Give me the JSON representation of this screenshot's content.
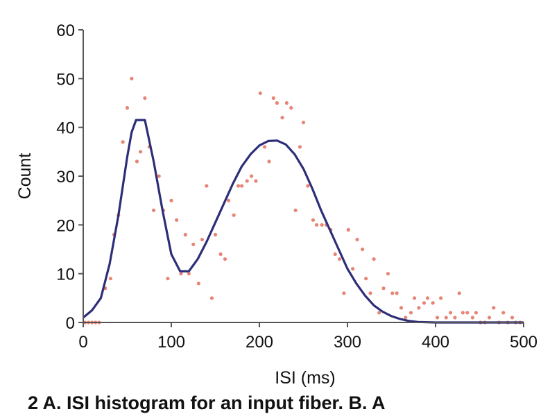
{
  "chart_data": {
    "type": "scatter",
    "title": "",
    "xlabel": "ISI (ms)",
    "ylabel": "Count",
    "xlim": [
      0,
      500
    ],
    "ylim": [
      0,
      60
    ],
    "xticks": [
      0,
      100,
      200,
      300,
      400,
      500
    ],
    "yticks": [
      0,
      10,
      20,
      30,
      40,
      50,
      60
    ],
    "grid": false,
    "colors": {
      "points": "#e2705e",
      "curve": "#2d2e78",
      "axis": "#555555"
    },
    "series": [
      {
        "name": "ISI histogram counts",
        "kind": "points",
        "points": [
          [
            2,
            0
          ],
          [
            6,
            0
          ],
          [
            10,
            0
          ],
          [
            14,
            0
          ],
          [
            18,
            0
          ],
          [
            25,
            7
          ],
          [
            31,
            9
          ],
          [
            35,
            18
          ],
          [
            40,
            22
          ],
          [
            45,
            37
          ],
          [
            50,
            44
          ],
          [
            55,
            50
          ],
          [
            61,
            33
          ],
          [
            65,
            35
          ],
          [
            70,
            46
          ],
          [
            75,
            36
          ],
          [
            80,
            23
          ],
          [
            86,
            30
          ],
          [
            91,
            23
          ],
          [
            96,
            9
          ],
          [
            100,
            25
          ],
          [
            106,
            21
          ],
          [
            111,
            10
          ],
          [
            116,
            18
          ],
          [
            120,
            10
          ],
          [
            125,
            16
          ],
          [
            131,
            8
          ],
          [
            135,
            17
          ],
          [
            140,
            28
          ],
          [
            146,
            5
          ],
          [
            150,
            18
          ],
          [
            156,
            14
          ],
          [
            161,
            13
          ],
          [
            165,
            25
          ],
          [
            171,
            22
          ],
          [
            176,
            28
          ],
          [
            180,
            28
          ],
          [
            186,
            29
          ],
          [
            191,
            30
          ],
          [
            196,
            29
          ],
          [
            201,
            47
          ],
          [
            206,
            36
          ],
          [
            211,
            33
          ],
          [
            216,
            46
          ],
          [
            220,
            45
          ],
          [
            226,
            42
          ],
          [
            231,
            45
          ],
          [
            236,
            44
          ],
          [
            241,
            23
          ],
          [
            246,
            36
          ],
          [
            250,
            41
          ],
          [
            255,
            28
          ],
          [
            261,
            21
          ],
          [
            265,
            20
          ],
          [
            271,
            20
          ],
          [
            276,
            20
          ],
          [
            281,
            19
          ],
          [
            286,
            14
          ],
          [
            291,
            13
          ],
          [
            296,
            6
          ],
          [
            301,
            19
          ],
          [
            306,
            11
          ],
          [
            311,
            17
          ],
          [
            317,
            15
          ],
          [
            321,
            9
          ],
          [
            326,
            6
          ],
          [
            330,
            13
          ],
          [
            336,
            2
          ],
          [
            341,
            7
          ],
          [
            346,
            10
          ],
          [
            351,
            6
          ],
          [
            356,
            6
          ],
          [
            361,
            3
          ],
          [
            366,
            1
          ],
          [
            372,
            2
          ],
          [
            376,
            5
          ],
          [
            381,
            3
          ],
          [
            387,
            4
          ],
          [
            391,
            5
          ],
          [
            397,
            4
          ],
          [
            402,
            1
          ],
          [
            406,
            5
          ],
          [
            412,
            1
          ],
          [
            417,
            2
          ],
          [
            422,
            1
          ],
          [
            427,
            6
          ],
          [
            431,
            2
          ],
          [
            436,
            2
          ],
          [
            442,
            1
          ],
          [
            446,
            2
          ],
          [
            451,
            0
          ],
          [
            456,
            0
          ],
          [
            461,
            1
          ],
          [
            466,
            3
          ],
          [
            472,
            0
          ],
          [
            477,
            2
          ],
          [
            482,
            0
          ],
          [
            487,
            1
          ],
          [
            491,
            0
          ],
          [
            496,
            0
          ]
        ]
      },
      {
        "name": "fitted curve",
        "kind": "line",
        "points": [
          [
            0,
            1
          ],
          [
            10,
            2.5
          ],
          [
            20,
            5
          ],
          [
            30,
            12
          ],
          [
            40,
            22
          ],
          [
            50,
            34
          ],
          [
            55,
            39
          ],
          [
            60,
            41.5
          ],
          [
            70,
            41.5
          ],
          [
            80,
            33
          ],
          [
            90,
            23
          ],
          [
            100,
            14
          ],
          [
            110,
            10.5
          ],
          [
            120,
            10.5
          ],
          [
            130,
            13
          ],
          [
            140,
            16.5
          ],
          [
            150,
            20.5
          ],
          [
            160,
            24.5
          ],
          [
            170,
            28.5
          ],
          [
            180,
            32
          ],
          [
            190,
            34.5
          ],
          [
            200,
            36.3
          ],
          [
            210,
            37.2
          ],
          [
            220,
            37.3
          ],
          [
            230,
            36.5
          ],
          [
            240,
            34.5
          ],
          [
            250,
            31.5
          ],
          [
            260,
            27.5
          ],
          [
            270,
            23
          ],
          [
            280,
            19
          ],
          [
            290,
            15
          ],
          [
            300,
            11
          ],
          [
            310,
            8
          ],
          [
            320,
            5.5
          ],
          [
            330,
            3.5
          ],
          [
            340,
            2.2
          ],
          [
            350,
            1.3
          ],
          [
            360,
            0.7
          ],
          [
            370,
            0.3
          ],
          [
            380,
            0.1
          ],
          [
            400,
            0
          ],
          [
            500,
            0
          ]
        ]
      }
    ]
  },
  "caption": "2   A. ISI histogram for an input fiber. B. A"
}
